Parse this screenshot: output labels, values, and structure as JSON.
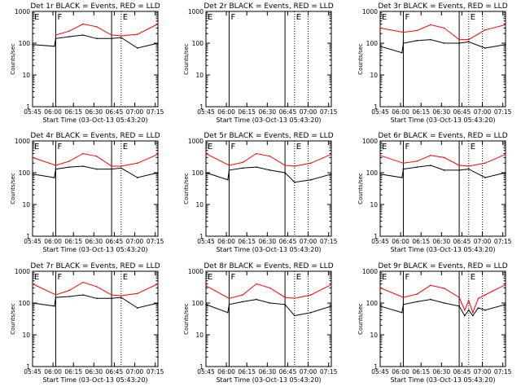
{
  "figure": {
    "ytick_labels": [
      "1",
      "10",
      "100",
      "1000"
    ],
    "xtick_labels": [
      "05:45",
      "06:00",
      "06:15",
      "06:30",
      "06:45",
      "07:00",
      "07:15"
    ],
    "xlabel": "Start Time (03-Oct-13 05:43:20)",
    "ylabel": "Counts/sec",
    "line_colors": {
      "events": "#000000",
      "lld": "#ff0000"
    }
  },
  "chart_data": [
    {
      "type": "line",
      "title": "Det 1r BLACK = Events, RED = LLD",
      "x_range_minutes": [
        -2,
        90
      ],
      "ylim": [
        1,
        1000
      ],
      "log_y": true,
      "ytick_labels": [
        "1",
        "10",
        "100",
        "1000"
      ],
      "xtick_labels": [
        "05:45",
        "06:00",
        "06:15",
        "06:30",
        "06:45",
        "07:00",
        "07:15"
      ],
      "xlabel": "Start Time (03-Oct-13 05:43:20)",
      "ylabel": "Counts/sec",
      "markers": [
        {
          "label": "E",
          "x": -2
        },
        {
          "label": "F",
          "x": 15
        },
        {
          "label": "E",
          "x": 63
        }
      ],
      "solid_lines_x": [
        15,
        56
      ],
      "dotted_lines_x": [
        63
      ],
      "series": [
        {
          "x": [
            15,
            25,
            35,
            45,
            56,
            63,
            75,
            90
          ],
          "y": [
            180,
            240,
            400,
            330,
            180,
            170,
            190,
            400
          ]
        },
        {
          "x": [
            -2,
            14,
            15,
            25,
            35,
            45,
            56,
            63,
            75,
            90
          ],
          "y": [
            90,
            80,
            140,
            160,
            180,
            140,
            140,
            150,
            70,
            100
          ]
        }
      ]
    },
    {
      "type": "line",
      "title": "Det 2r BLACK = Events, RED = LLD",
      "x_range_minutes": [
        -2,
        90
      ],
      "ylim": [
        1,
        1000
      ],
      "log_y": true,
      "ytick_labels": [
        "1",
        "10",
        "100",
        "1000"
      ],
      "xtick_labels": [
        "05:45",
        "06:00",
        "06:15",
        "06:30",
        "06:45",
        "07:00",
        "07:15"
      ],
      "xlabel": "Start Time (03-Oct-13 05:43:20)",
      "ylabel": "Counts/sec",
      "markers": [
        {
          "label": "E",
          "x": -2
        },
        {
          "label": "F",
          "x": 15
        },
        {
          "label": "E",
          "x": 63
        }
      ],
      "solid_lines_x": [
        15,
        56
      ],
      "dotted_lines_x": [
        63,
        73
      ],
      "series": []
    },
    {
      "type": "line",
      "title": "Det 3r BLACK = Events, RED = LLD",
      "x_range_minutes": [
        -2,
        90
      ],
      "ylim": [
        1,
        1000
      ],
      "log_y": true,
      "ytick_labels": [
        "1",
        "10",
        "100",
        "1000"
      ],
      "xtick_labels": [
        "05:45",
        "06:00",
        "06:15",
        "06:30",
        "06:45",
        "07:00",
        "07:15"
      ],
      "xlabel": "Start Time (03-Oct-13 05:43:20)",
      "ylabel": "Counts/sec",
      "markers": [
        {
          "label": "E",
          "x": -2
        },
        {
          "label": "F",
          "x": 15
        },
        {
          "label": "E",
          "x": 63
        }
      ],
      "solid_lines_x": [
        15,
        56
      ],
      "dotted_lines_x": [
        63,
        73
      ],
      "series": [
        {
          "x": [
            -2,
            15,
            25,
            35,
            45,
            56,
            63,
            75,
            90
          ],
          "y": [
            300,
            220,
            250,
            380,
            300,
            130,
            130,
            260,
            380
          ]
        },
        {
          "x": [
            -2,
            14,
            15,
            25,
            35,
            45,
            56,
            63,
            75,
            90
          ],
          "y": [
            80,
            50,
            100,
            120,
            130,
            100,
            100,
            110,
            70,
            90
          ]
        }
      ]
    },
    {
      "type": "line",
      "title": "Det 4r BLACK = Events, RED = LLD",
      "x_range_minutes": [
        -2,
        90
      ],
      "ylim": [
        1,
        1000
      ],
      "log_y": true,
      "ytick_labels": [
        "1",
        "10",
        "100",
        "1000"
      ],
      "xtick_labels": [
        "05:45",
        "06:00",
        "06:15",
        "06:30",
        "06:45",
        "07:00",
        "07:15"
      ],
      "xlabel": "Start Time (03-Oct-13 05:43:20)",
      "ylabel": "Counts/sec",
      "markers": [
        {
          "label": "E",
          "x": -2
        },
        {
          "label": "F",
          "x": 15
        },
        {
          "label": "E",
          "x": 63
        }
      ],
      "solid_lines_x": [
        15,
        56
      ],
      "dotted_lines_x": [
        63
      ],
      "series": [
        {
          "x": [
            -2,
            15,
            25,
            35,
            45,
            56,
            63,
            75,
            90
          ],
          "y": [
            300,
            170,
            230,
            400,
            330,
            160,
            160,
            200,
            380
          ]
        },
        {
          "x": [
            -2,
            14,
            15,
            25,
            35,
            45,
            56,
            63,
            75,
            90
          ],
          "y": [
            90,
            70,
            130,
            150,
            160,
            130,
            130,
            140,
            70,
            100
          ]
        }
      ]
    },
    {
      "type": "line",
      "title": "Det 5r BLACK = Events, RED = LLD",
      "x_range_minutes": [
        -2,
        90
      ],
      "ylim": [
        1,
        1000
      ],
      "log_y": true,
      "ytick_labels": [
        "1",
        "10",
        "100",
        "1000"
      ],
      "xtick_labels": [
        "05:45",
        "06:00",
        "06:15",
        "06:30",
        "06:45",
        "07:00",
        "07:15"
      ],
      "xlabel": "Start Time (03-Oct-13 05:43:20)",
      "ylabel": "Counts/sec",
      "markers": [
        {
          "label": "E",
          "x": -2
        },
        {
          "label": "F",
          "x": 15
        },
        {
          "label": "E",
          "x": 63
        }
      ],
      "solid_lines_x": [
        15,
        56
      ],
      "dotted_lines_x": [
        63,
        73
      ],
      "series": [
        {
          "x": [
            -2,
            15,
            25,
            35,
            45,
            56,
            63,
            75,
            90
          ],
          "y": [
            400,
            170,
            210,
            400,
            330,
            170,
            160,
            200,
            380
          ]
        },
        {
          "x": [
            -2,
            14,
            15,
            25,
            35,
            45,
            56,
            63,
            75,
            90
          ],
          "y": [
            100,
            60,
            120,
            140,
            150,
            120,
            100,
            50,
            60,
            90
          ]
        }
      ]
    },
    {
      "type": "line",
      "title": "Det 6r BLACK = Events, RED = LLD",
      "x_range_minutes": [
        -2,
        90
      ],
      "ylim": [
        1,
        1000
      ],
      "log_y": true,
      "ytick_labels": [
        "1",
        "10",
        "100",
        "1000"
      ],
      "xtick_labels": [
        "05:45",
        "06:00",
        "06:15",
        "06:30",
        "06:45",
        "07:00",
        "07:15"
      ],
      "xlabel": "Start Time (03-Oct-13 05:43:20)",
      "ylabel": "Counts/sec",
      "markers": [
        {
          "label": "E",
          "x": -2
        },
        {
          "label": "F",
          "x": 15
        },
        {
          "label": "E",
          "x": 63
        }
      ],
      "solid_lines_x": [
        15,
        56
      ],
      "dotted_lines_x": [
        63,
        73
      ],
      "series": [
        {
          "x": [
            -2,
            15,
            25,
            35,
            45,
            56,
            63,
            75,
            90
          ],
          "y": [
            350,
            200,
            230,
            350,
            300,
            170,
            160,
            200,
            380
          ]
        },
        {
          "x": [
            -2,
            14,
            15,
            25,
            35,
            45,
            56,
            63,
            75,
            90
          ],
          "y": [
            90,
            70,
            130,
            150,
            170,
            120,
            120,
            130,
            70,
            100
          ]
        }
      ]
    },
    {
      "type": "line",
      "title": "Det 7r BLACK = Events, RED = LLD",
      "x_range_minutes": [
        -2,
        90
      ],
      "ylim": [
        1,
        1000
      ],
      "log_y": true,
      "ytick_labels": [
        "1",
        "10",
        "100",
        "1000"
      ],
      "xtick_labels": [
        "05:45",
        "06:00",
        "06:15",
        "06:30",
        "06:45",
        "07:00",
        "07:15"
      ],
      "xlabel": "Start Time (03-Oct-13 05:43:20)",
      "ylabel": "Counts/sec",
      "markers": [
        {
          "label": "E",
          "x": -2
        },
        {
          "label": "F",
          "x": 15
        },
        {
          "label": "E",
          "x": 63
        }
      ],
      "solid_lines_x": [
        15,
        56
      ],
      "dotted_lines_x": [
        63
      ],
      "series": [
        {
          "x": [
            -2,
            15,
            25,
            35,
            45,
            56,
            63,
            75,
            90
          ],
          "y": [
            400,
            180,
            250,
            450,
            330,
            180,
            170,
            200,
            400
          ]
        },
        {
          "x": [
            -2,
            14,
            15,
            25,
            35,
            45,
            56,
            63,
            75,
            90
          ],
          "y": [
            100,
            80,
            150,
            160,
            180,
            140,
            140,
            150,
            70,
            100
          ]
        }
      ]
    },
    {
      "type": "line",
      "title": "Det 8r BLACK = Events, RED = LLD",
      "x_range_minutes": [
        -2,
        90
      ],
      "ylim": [
        1,
        1000
      ],
      "log_y": true,
      "ytick_labels": [
        "1",
        "10",
        "100",
        "1000"
      ],
      "xtick_labels": [
        "05:45",
        "06:00",
        "06:15",
        "06:30",
        "06:45",
        "07:00",
        "07:15"
      ],
      "xlabel": "Start Time (03-Oct-13 05:43:20)",
      "ylabel": "Counts/sec",
      "markers": [
        {
          "label": "E",
          "x": -2
        },
        {
          "label": "F",
          "x": 15
        },
        {
          "label": "E",
          "x": 63
        }
      ],
      "solid_lines_x": [
        15,
        56
      ],
      "dotted_lines_x": [
        63,
        73
      ],
      "series": [
        {
          "x": [
            -2,
            15,
            25,
            35,
            45,
            56,
            63,
            75,
            90
          ],
          "y": [
            350,
            140,
            180,
            400,
            300,
            150,
            140,
            180,
            380
          ]
        },
        {
          "x": [
            -2,
            14,
            15,
            25,
            35,
            45,
            56,
            63,
            75,
            90
          ],
          "y": [
            90,
            50,
            90,
            110,
            130,
            100,
            90,
            40,
            50,
            80
          ]
        }
      ]
    },
    {
      "type": "line",
      "title": "Det 9r BLACK = Events, RED = LLD",
      "x_range_minutes": [
        -2,
        90
      ],
      "ylim": [
        1,
        1000
      ],
      "log_y": true,
      "ytick_labels": [
        "1",
        "10",
        "100",
        "1000"
      ],
      "xtick_labels": [
        "05:45",
        "06:00",
        "06:15",
        "06:30",
        "06:45",
        "07:00",
        "07:15"
      ],
      "xlabel": "Start Time (03-Oct-13 05:43:20)",
      "ylabel": "Counts/sec",
      "markers": [
        {
          "label": "E",
          "x": -2
        },
        {
          "label": "F",
          "x": 15
        },
        {
          "label": "E",
          "x": 63
        }
      ],
      "solid_lines_x": [
        15,
        56
      ],
      "dotted_lines_x": [
        63,
        73
      ],
      "series": [
        {
          "x": [
            -2,
            15,
            25,
            35,
            45,
            56,
            60,
            63,
            66,
            70,
            75,
            90
          ],
          "y": [
            300,
            150,
            190,
            360,
            290,
            150,
            60,
            120,
            50,
            140,
            180,
            380
          ]
        },
        {
          "x": [
            -2,
            14,
            15,
            25,
            35,
            45,
            56,
            60,
            63,
            66,
            70,
            75,
            90
          ],
          "y": [
            80,
            50,
            90,
            110,
            130,
            100,
            80,
            40,
            60,
            40,
            70,
            60,
            90
          ]
        }
      ]
    }
  ]
}
